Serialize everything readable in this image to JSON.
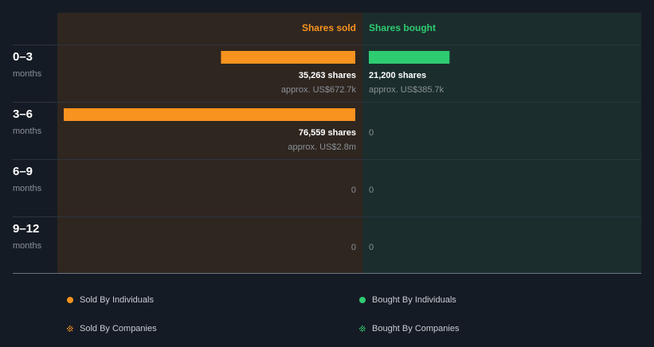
{
  "colors": {
    "background": "#151b24",
    "sold_panel": "#2f2620",
    "bought_panel": "#1b2e2d",
    "sold": "#f7931e",
    "bought": "#2ecc71",
    "divider": "#2c3440",
    "label": "#ffffff",
    "muted": "#8a9099"
  },
  "chart_data": {
    "type": "bar",
    "orientation": "horizontal",
    "columns": {
      "sold": "Shares sold",
      "bought": "Shares bought"
    },
    "rows": [
      {
        "period": "0–3",
        "unit": "months",
        "sold_shares": 35263,
        "sold_label": "35,263 shares",
        "sold_value": "approx. US$672.7k",
        "bought_shares": 21200,
        "bought_label": "21,200 shares",
        "bought_value": "approx. US$385.7k"
      },
      {
        "period": "3–6",
        "unit": "months",
        "sold_shares": 76559,
        "sold_label": "76,559 shares",
        "sold_value": "approx. US$2.8m",
        "bought_shares": 0,
        "bought_label": "0",
        "bought_value": ""
      },
      {
        "period": "6–9",
        "unit": "months",
        "sold_shares": 0,
        "sold_label": "0",
        "sold_value": "",
        "bought_shares": 0,
        "bought_label": "0",
        "bought_value": ""
      },
      {
        "period": "9–12",
        "unit": "months",
        "sold_shares": 0,
        "sold_label": "0",
        "sold_value": "",
        "bought_shares": 0,
        "bought_label": "0",
        "bought_value": ""
      }
    ],
    "max_shares": 76559
  },
  "legend": {
    "sold_individuals": "Sold By Individuals",
    "bought_individuals": "Bought By Individuals",
    "sold_companies": "Sold By Companies",
    "bought_companies": "Bought By Companies"
  }
}
